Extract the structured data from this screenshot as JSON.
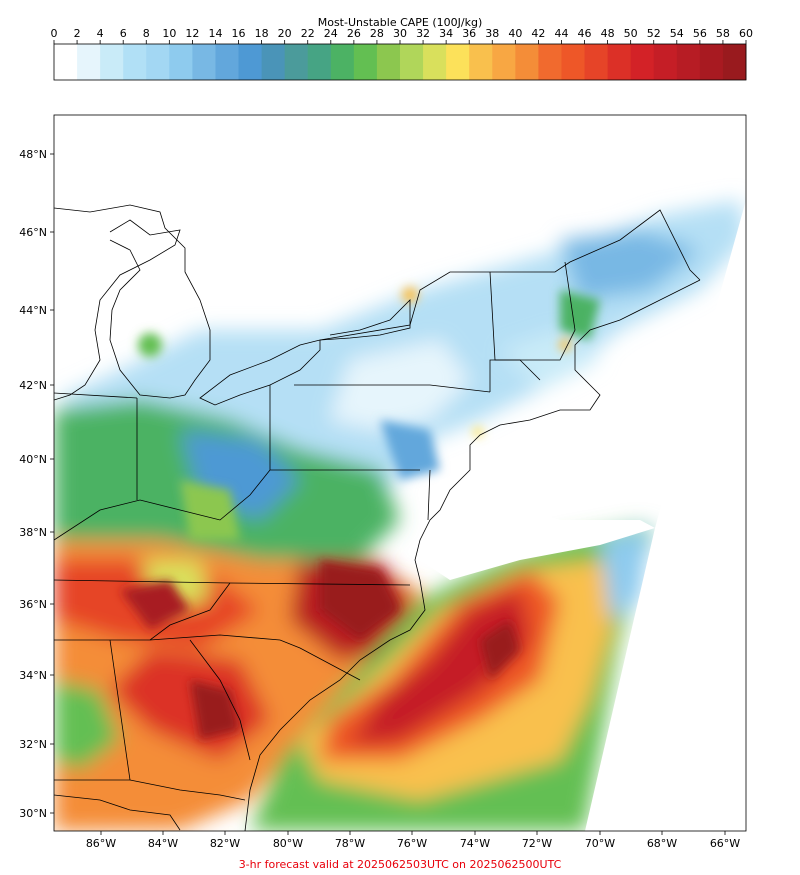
{
  "colorbar": {
    "title": "Most-Unstable CAPE (100J/kg)",
    "ticks": [
      0,
      2,
      4,
      6,
      8,
      10,
      12,
      14,
      16,
      18,
      20,
      22,
      24,
      26,
      28,
      30,
      32,
      34,
      36,
      38,
      40,
      42,
      44,
      46,
      48,
      50,
      52,
      54,
      56,
      58,
      60
    ],
    "colors": [
      "#ffffff",
      "#e6f5fc",
      "#c9ebf8",
      "#b1e0f6",
      "#a3d7f3",
      "#8ecbee",
      "#78b8e4",
      "#62a7dc",
      "#4e99d4",
      "#4a94b8",
      "#4b9b9b",
      "#46a484",
      "#4cb264",
      "#63bf52",
      "#8cc74f",
      "#b0d65a",
      "#d9e05c",
      "#fce15a",
      "#f9c04d",
      "#f8a743",
      "#f48d38",
      "#f16a2e",
      "#ee5728",
      "#e64428",
      "#dc3027",
      "#d32227",
      "#c51e26",
      "#b71c24",
      "#a81a21",
      "#991a1e"
    ],
    "extend": "max"
  },
  "map": {
    "lat_ticks": [
      "48°N",
      "46°N",
      "44°N",
      "42°N",
      "40°N",
      "38°N",
      "36°N",
      "34°N",
      "32°N",
      "30°N"
    ],
    "lon_ticks": [
      "86°W",
      "84°W",
      "82°W",
      "80°W",
      "78°W",
      "76°W",
      "74°W",
      "72°W",
      "70°W",
      "68°W",
      "66°W"
    ]
  },
  "footer": "3-hr forecast valid at 2025062503UTC on 2025062500UTC"
}
